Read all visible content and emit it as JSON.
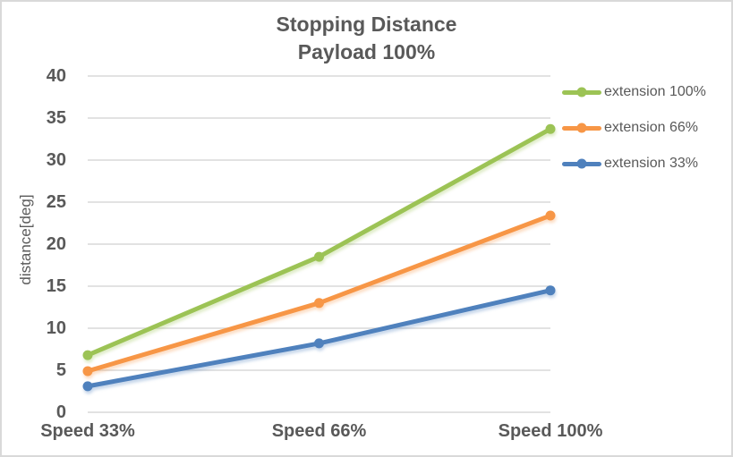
{
  "window": {
    "background_color": "#ffffff",
    "border_color": "#d9d9d9"
  },
  "chart_data": {
    "type": "line",
    "title": "Stopping Distance",
    "subtitle": "Payload 100%",
    "ylabel": "distance[deg]",
    "xlabel": "",
    "categories": [
      "Speed 33%",
      "Speed 66%",
      "Speed 100%"
    ],
    "series": [
      {
        "name": "extension 100%",
        "color": "#9CC355",
        "values": [
          6.8,
          18.5,
          33.7
        ]
      },
      {
        "name": "extension 66%",
        "color": "#F79646",
        "values": [
          4.9,
          13.0,
          23.4
        ]
      },
      {
        "name": "extension 33%",
        "color": "#4F81BD",
        "values": [
          3.1,
          8.2,
          14.5
        ]
      }
    ],
    "ylim": [
      0,
      40
    ],
    "yticks": [
      0,
      5,
      10,
      15,
      20,
      25,
      30,
      35,
      40
    ],
    "grid": true,
    "legend_position": "right",
    "marker": "circle",
    "text_color": "#595959",
    "grid_color": "#d9d9d9"
  }
}
